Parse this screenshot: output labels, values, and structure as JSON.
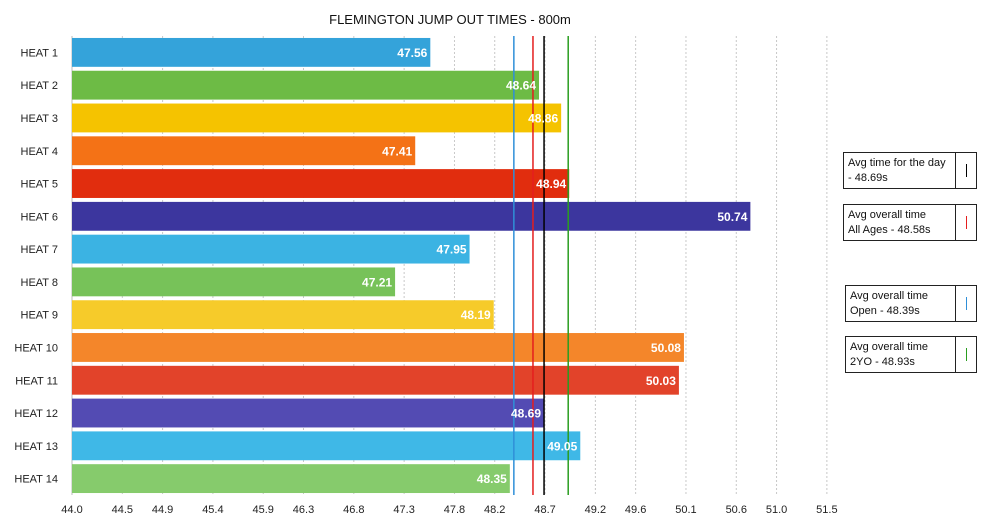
{
  "chart_data": {
    "type": "bar",
    "orientation": "horizontal",
    "title": "FLEMINGTON JUMP OUT TIMES - 800m",
    "categories": [
      "HEAT 1",
      "HEAT 2",
      "HEAT 3",
      "HEAT 4",
      "HEAT 5",
      "HEAT 6",
      "HEAT 7",
      "HEAT 8",
      "HEAT 9",
      "HEAT 10",
      "HEAT 11",
      "HEAT 12",
      "HEAT 13",
      "HEAT 14"
    ],
    "values": [
      47.56,
      48.64,
      48.86,
      47.41,
      48.94,
      50.74,
      47.95,
      47.21,
      48.19,
      50.08,
      50.03,
      48.69,
      49.05,
      48.35
    ],
    "value_labels": [
      "47.56",
      "48.64",
      "48.86",
      "47.41",
      "48.94",
      "50.74",
      "47.95",
      "47.21",
      "48.19",
      "50.08",
      "50.03",
      "48.69",
      "49.05",
      "48.35"
    ],
    "bar_colors": [
      "#34a3da",
      "#6dbb45",
      "#f5c300",
      "#f47216",
      "#e12d0e",
      "#3c369e",
      "#3bb3e3",
      "#77c259",
      "#f6cb2a",
      "#f4862a",
      "#e2432a",
      "#534bb3",
      "#3fb8e7",
      "#86cb6c"
    ],
    "xlim": [
      44.0,
      51.7
    ],
    "xticks": [
      44.0,
      44.5,
      44.9,
      45.4,
      45.9,
      46.3,
      46.8,
      47.3,
      47.8,
      48.2,
      48.7,
      49.2,
      49.6,
      50.1,
      50.6,
      51.0,
      51.5
    ],
    "xtick_labels": [
      "44.0",
      "44.5",
      "44.9",
      "45.4",
      "45.9",
      "46.3",
      "46.8",
      "47.3",
      "47.8",
      "48.2",
      "48.7",
      "49.2",
      "49.6",
      "50.1",
      "50.6",
      "51.0",
      "51.5"
    ],
    "grid": true,
    "xlabel": "",
    "ylabel": "",
    "reference_lines": [
      {
        "value": 48.39,
        "color": "#2f8fd8"
      },
      {
        "value": 48.58,
        "color": "#e41e1e"
      },
      {
        "value": 48.69,
        "color": "#000000"
      },
      {
        "value": 48.93,
        "color": "#2a9d1f"
      }
    ],
    "legend": [
      {
        "line1": "Avg time for the day",
        "line2": "- 48.69s",
        "color": "#000000"
      },
      {
        "line1": "Avg overall time",
        "line2": "All Ages - 48.58s",
        "color": "#e41e1e"
      },
      {
        "line1": "Avg overall time",
        "line2": "Open - 48.39s",
        "color": "#2f8fd8"
      },
      {
        "line1": "Avg overall time",
        "line2": "2YO - 48.93s",
        "color": "#2a9d1f"
      }
    ],
    "legend_placement": "right"
  }
}
